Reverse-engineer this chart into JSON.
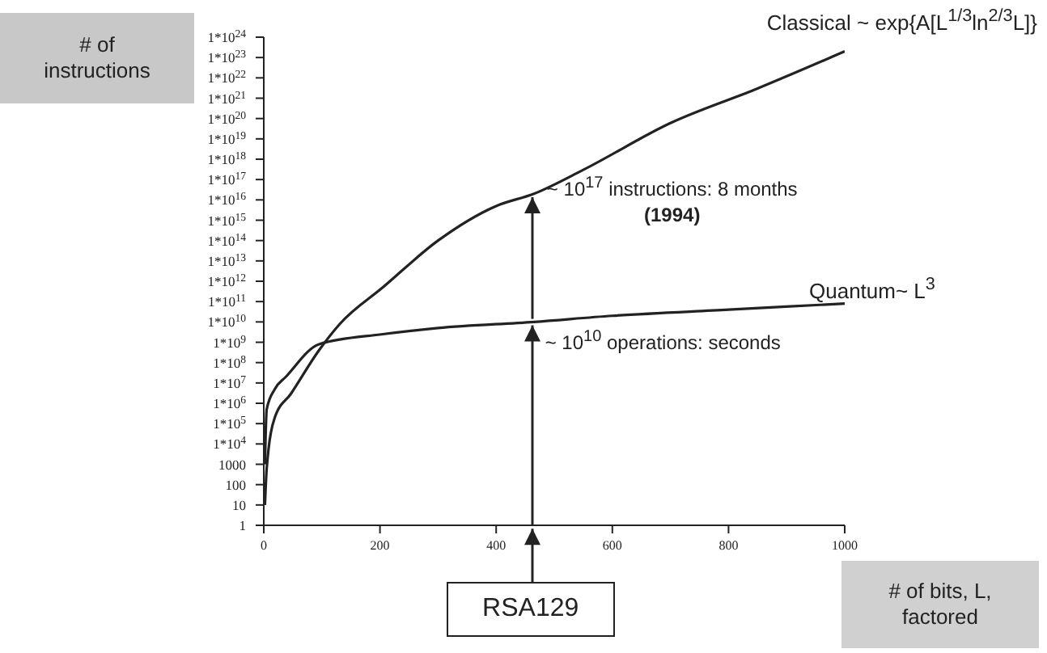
{
  "chart_data": {
    "type": "line",
    "xlabel": "# of bits, L, factored",
    "ylabel": "# of instructions",
    "log": "y",
    "marker": "none",
    "line_style": "solid",
    "xlim": [
      0,
      1000
    ],
    "xticks": [
      0,
      200,
      400,
      600,
      800,
      1000
    ],
    "ylim": [
      1,
      1e+24
    ],
    "yticks": [
      1,
      10,
      100,
      1000,
      {
        "value": 10000.0,
        "label": "1*10$^{4}$"
      },
      {
        "value": 100000.0,
        "label": "1*10$^{5}$"
      },
      {
        "value": 1000000.0,
        "label": "1*10$^{6}$"
      },
      {
        "value": 10000000.0,
        "label": "1*10$^{7}$"
      },
      {
        "value": 100000000.0,
        "label": "1*10$^{8}$"
      },
      {
        "value": 1000000000.0,
        "label": "1*10$^{9}$"
      },
      {
        "value": 10000000000.0,
        "label": "1*10$^{10}$"
      },
      {
        "value": 100000000000.0,
        "label": "1*10$^{11}$"
      },
      {
        "value": 1000000000000.0,
        "label": "1*10$^{12}$"
      },
      {
        "value": 10000000000000.0,
        "label": "1*10$^{13}$"
      },
      {
        "value": 100000000000000.0,
        "label": "1*10$^{14}$"
      },
      {
        "value": 1000000000000000.0,
        "label": "1*10$^{15}$"
      },
      {
        "value": 1e+16,
        "label": "1*10$^{16}$"
      },
      {
        "value": 1e+17,
        "label": "1*10$^{17}$"
      },
      {
        "value": 1e+18,
        "label": "1*10$^{18}$"
      },
      {
        "value": 1e+19,
        "label": "1*10$^{19}$"
      },
      {
        "value": 1e+20,
        "label": "1*10$^{20}$"
      },
      {
        "value": 1e+21,
        "label": "1*10$^{21}$"
      },
      {
        "value": 1e+22,
        "label": "1*10$^{22}$"
      },
      {
        "value": 1e+23,
        "label": "1*10$^{23}$"
      },
      {
        "value": 1e+24,
        "label": "1*10$^{24}$"
      }
    ],
    "series": [
      {
        "name": "Classical ~ exp{A[L$^{1/3}$ln$^{2/3}$L]}",
        "color": "#222222",
        "x": [
          2,
          5,
          19,
          47,
          95,
          131,
          205,
          300,
          400,
          465,
          550,
          700,
          850,
          1000
        ],
        "values": [
          10,
          600,
          200000.0,
          3000000.0,
          400000000.0,
          8000000000.0,
          500000000000.0,
          100000000000000.0,
          5000000000000000.0,
          2e+16,
          3e+17,
          6e+19,
          3e+21,
          2e+23
        ]
      },
      {
        "name": "Quantum~ L$^{3}$",
        "color": "#222222",
        "x": [
          2,
          5,
          19,
          38,
          95,
          205,
          300,
          465,
          600,
          800,
          1000
        ],
        "values": [
          1000,
          500000.0,
          5000000.0,
          20000000.0,
          800000000.0,
          2500000000.0,
          5000000000.0,
          10000000000.0,
          20000000000.0,
          40000000000.0,
          80000000000.0
        ]
      }
    ],
    "annotations": [
      {
        "text": "~ 10$^{17}$ instructions: 8 months",
        "x": 465,
        "y": 2e+16
      },
      "(1994)",
      {
        "text": "~ 10$^{10}$ operations: seconds",
        "x": 462,
        "y": 10000000000.0
      },
      "RSA129"
    ]
  }
}
